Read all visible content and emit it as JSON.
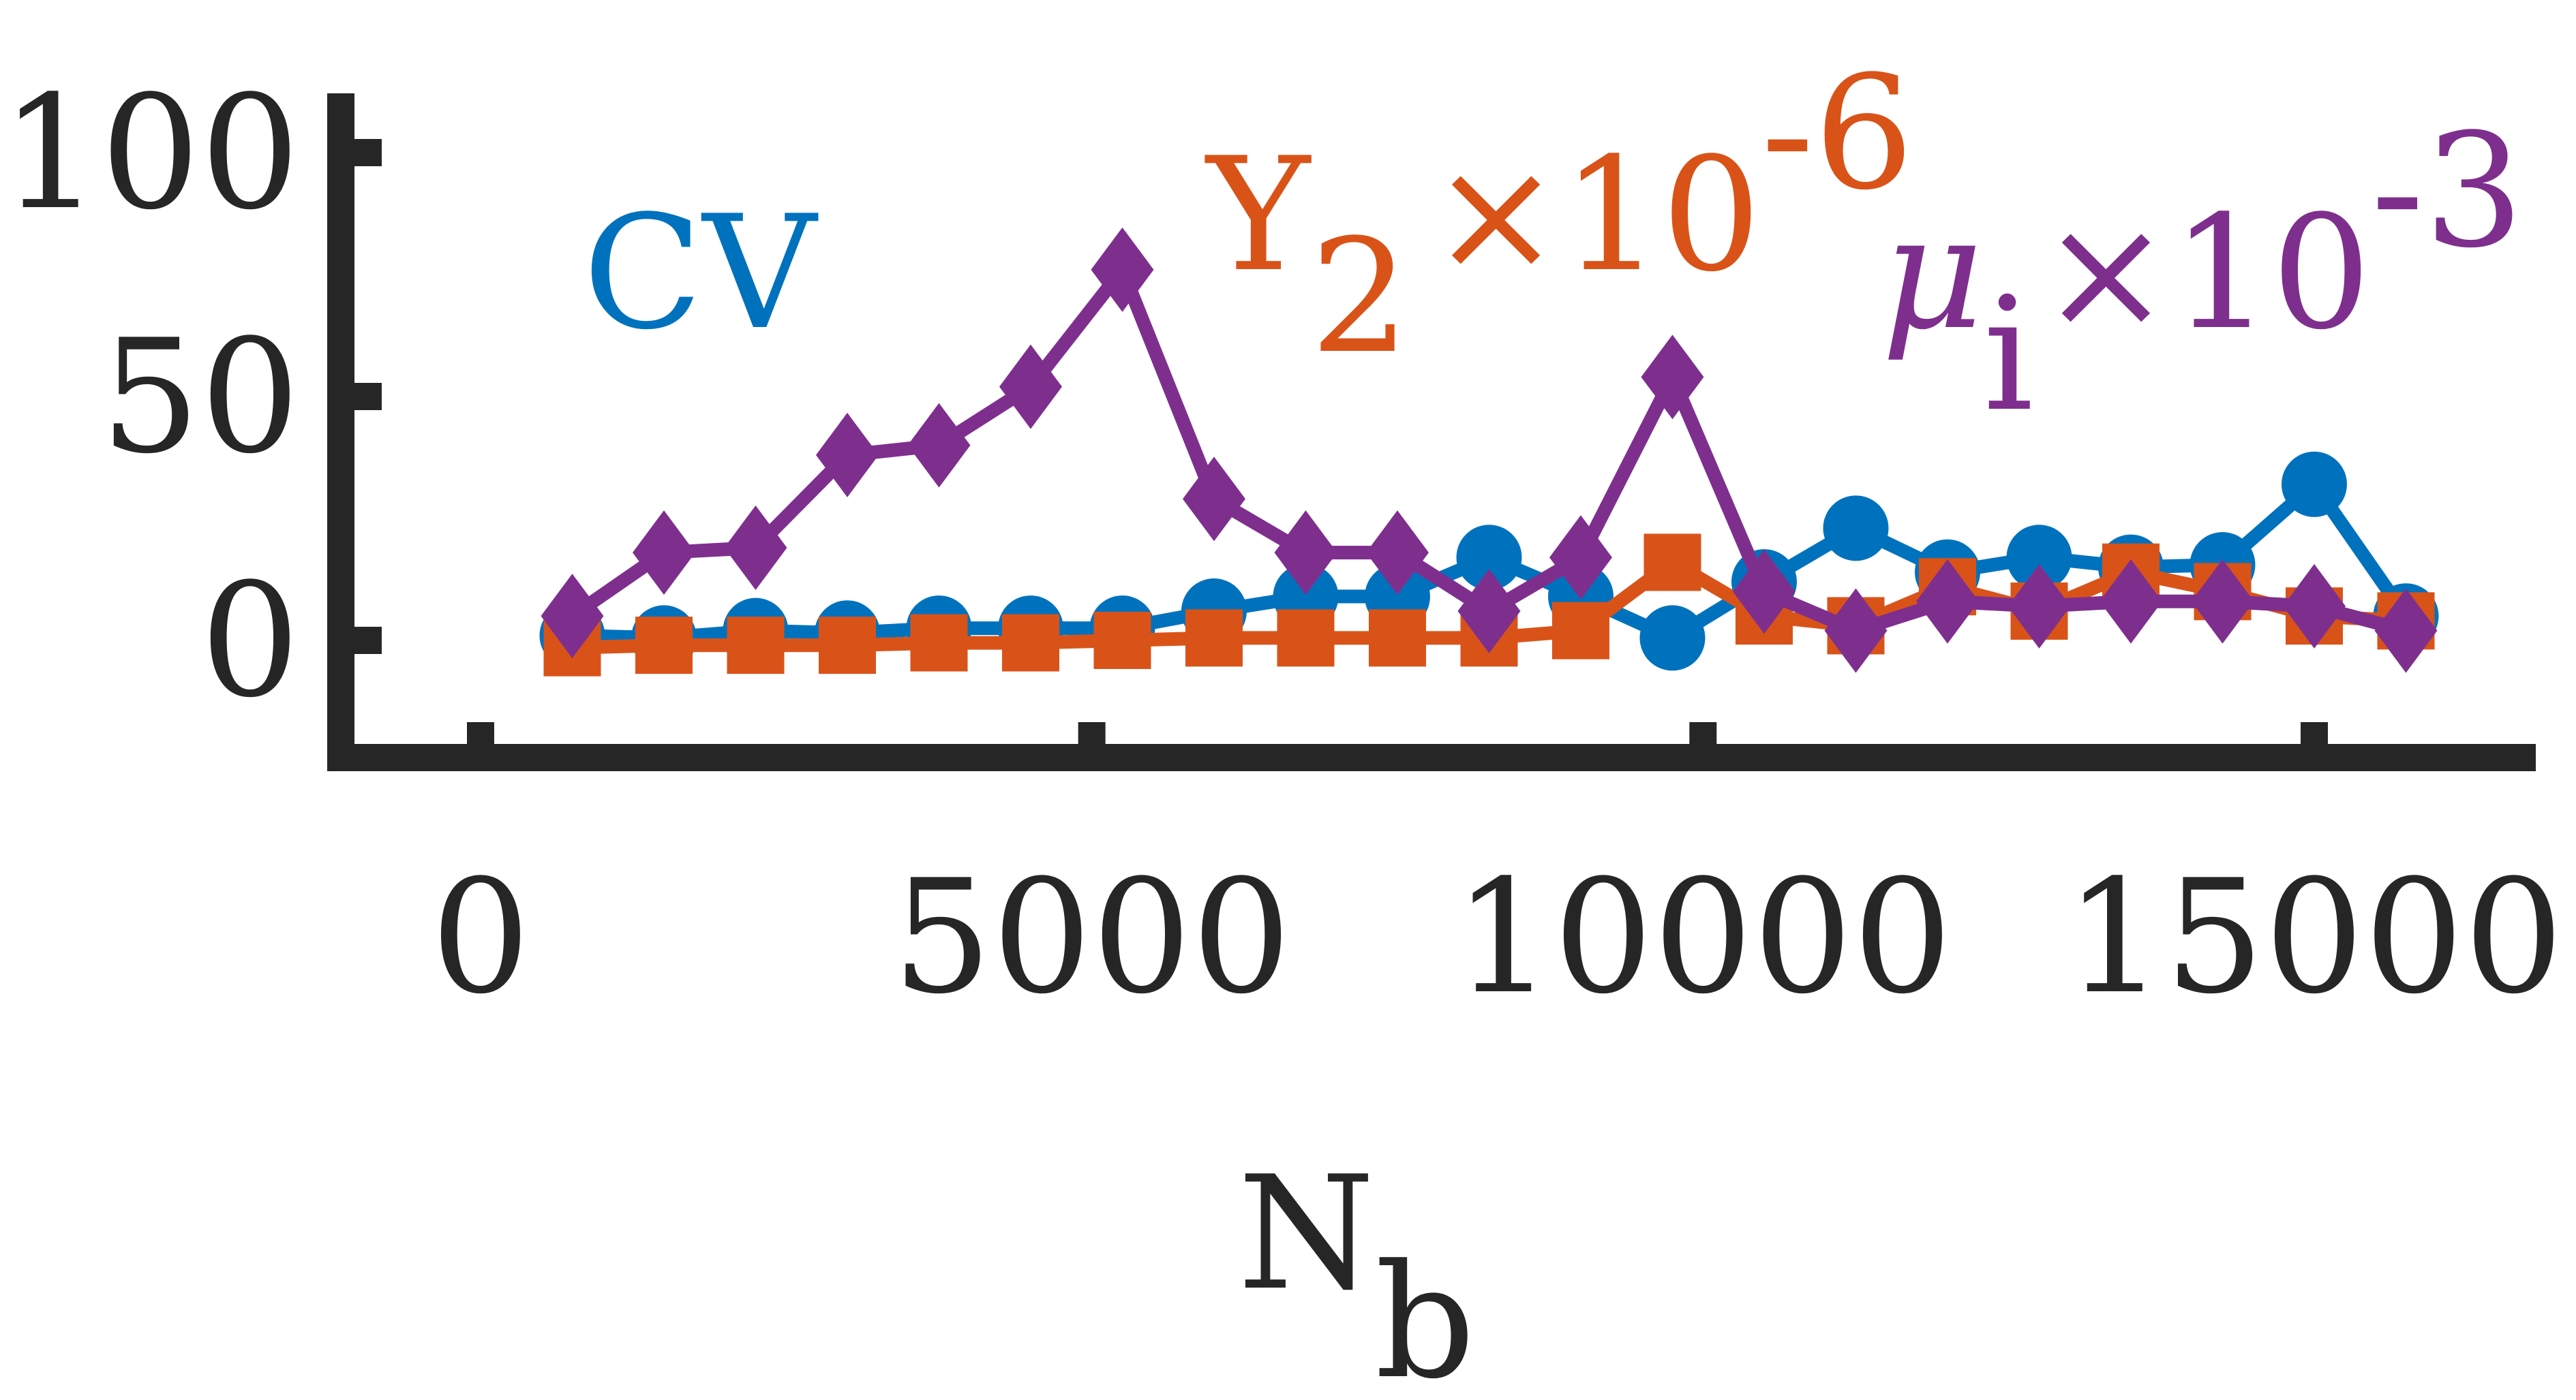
{
  "chart_data": {
    "type": "line",
    "xlabel": "N",
    "xlabel_sub": "b",
    "xlim": [
      -250,
      16500
    ],
    "ylim": [
      -12,
      100
    ],
    "xticks": [
      0,
      5000,
      10000,
      15000
    ],
    "xtick_labels": [
      "0",
      "5000",
      "10000",
      "15000"
    ],
    "yticks": [
      0,
      50,
      100
    ],
    "ytick_labels": [
      "0",
      "50",
      "100"
    ],
    "grid": false,
    "legend": "inline labels",
    "x": [
      750,
      1500,
      2250,
      3000,
      3750,
      4500,
      5250,
      6000,
      6750,
      7500,
      8250,
      9000,
      9750,
      10500,
      11250,
      12000,
      12750,
      13500,
      14250,
      15000,
      15750
    ],
    "series": [
      {
        "name": "CV",
        "color": "#0072BD",
        "marker": "circle",
        "values": [
          1,
          0.5,
          2,
          1.5,
          2.5,
          2.5,
          2.5,
          6,
          9,
          9,
          17,
          9,
          0.5,
          12,
          23,
          14,
          17,
          15,
          15.5,
          32,
          5
        ]
      },
      {
        "name": "Y2 x 10^-6",
        "label_main": "Y",
        "label_sub": "2",
        "label_exp": "×10",
        "label_sup": "-6",
        "color": "#D95319",
        "marker": "square",
        "values": [
          -1.5,
          -1,
          -1,
          -1,
          -0.5,
          -0.5,
          0,
          0.5,
          0.5,
          0.5,
          0.5,
          2,
          16,
          5,
          3,
          11,
          6,
          14,
          10,
          5,
          4
        ]
      },
      {
        "name": "μi x 10^-3",
        "label_main": "μ",
        "label_sub": "i",
        "label_exp": "×10",
        "label_sup": "-3",
        "color": "#7E2F8E",
        "marker": "diamond",
        "values": [
          5,
          18,
          19,
          38,
          40,
          52,
          76,
          29,
          18,
          18,
          6,
          17,
          54,
          10,
          2,
          8,
          7,
          8,
          8,
          7,
          2
        ]
      }
    ]
  }
}
